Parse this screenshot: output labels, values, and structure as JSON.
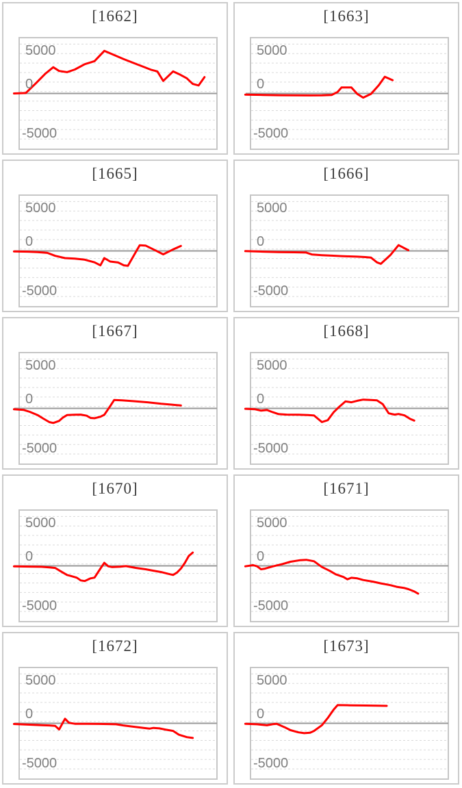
{
  "colors": {
    "series": "#ff0000",
    "zero_line": "#999999",
    "gridline": "#d9d9d9",
    "plot_border": "#c6c6c6",
    "card_border": "#cbcbcb",
    "tick_label": "#808080",
    "title": "#3a3a3a",
    "background": "#ffffff"
  },
  "axis": {
    "ylim": [
      -7250,
      7250
    ],
    "grid_step": 1250,
    "yticks": [
      {
        "label": "5000",
        "value": 5000
      },
      {
        "label": "0",
        "value": 0
      },
      {
        "label": "-5000",
        "value": -5000
      }
    ]
  },
  "chart_data": {
    "type": "line",
    "series_color": "#ff0000",
    "x_unit": "percent_of_plot_width",
    "ylim": [
      -7250,
      7250
    ],
    "grid": "dashed_every_1250",
    "legend": "none",
    "charts": [
      {
        "title": "[1662]",
        "points": [
          [
            -3,
            0
          ],
          [
            3,
            50
          ],
          [
            8,
            1300
          ],
          [
            13,
            2600
          ],
          [
            17,
            3450
          ],
          [
            20,
            2950
          ],
          [
            24,
            2800
          ],
          [
            28,
            3150
          ],
          [
            33,
            3850
          ],
          [
            38,
            4250
          ],
          [
            43,
            5600
          ],
          [
            48,
            5050
          ],
          [
            53,
            4500
          ],
          [
            58,
            4000
          ],
          [
            63,
            3500
          ],
          [
            67,
            3100
          ],
          [
            70,
            2900
          ],
          [
            73,
            1650
          ],
          [
            78,
            2900
          ],
          [
            81,
            2550
          ],
          [
            85,
            2000
          ],
          [
            88,
            1250
          ],
          [
            91,
            1050
          ],
          [
            94,
            2150
          ]
        ]
      },
      {
        "title": "[1663]",
        "points": [
          [
            -3,
            -150
          ],
          [
            6,
            -200
          ],
          [
            14,
            -230
          ],
          [
            22,
            -250
          ],
          [
            30,
            -260
          ],
          [
            36,
            -250
          ],
          [
            41,
            -200
          ],
          [
            44,
            200
          ],
          [
            46,
            780
          ],
          [
            51,
            780
          ],
          [
            54,
            -60
          ],
          [
            57,
            -550
          ],
          [
            61,
            -50
          ],
          [
            65,
            1100
          ],
          [
            68,
            2200
          ],
          [
            72,
            1750
          ]
        ]
      },
      {
        "title": "[1665]",
        "points": [
          [
            -3,
            -60
          ],
          [
            4,
            -100
          ],
          [
            9,
            -160
          ],
          [
            14,
            -260
          ],
          [
            18,
            -650
          ],
          [
            23,
            -950
          ],
          [
            28,
            -1020
          ],
          [
            33,
            -1150
          ],
          [
            38,
            -1500
          ],
          [
            41,
            -1900
          ],
          [
            43,
            -950
          ],
          [
            46,
            -1400
          ],
          [
            50,
            -1520
          ],
          [
            53,
            -1900
          ],
          [
            55,
            -1950
          ],
          [
            61,
            750
          ],
          [
            64,
            700
          ],
          [
            68,
            200
          ],
          [
            73,
            -450
          ],
          [
            78,
            200
          ],
          [
            82,
            660
          ]
        ]
      },
      {
        "title": "[1666]",
        "points": [
          [
            -3,
            -30
          ],
          [
            6,
            -100
          ],
          [
            14,
            -150
          ],
          [
            22,
            -180
          ],
          [
            28,
            -220
          ],
          [
            31,
            -480
          ],
          [
            36,
            -560
          ],
          [
            41,
            -620
          ],
          [
            46,
            -680
          ],
          [
            50,
            -720
          ],
          [
            54,
            -760
          ],
          [
            58,
            -810
          ],
          [
            61,
            -880
          ],
          [
            64,
            -1500
          ],
          [
            66,
            -1700
          ],
          [
            71,
            -500
          ],
          [
            75,
            760
          ],
          [
            80,
            90
          ]
        ]
      },
      {
        "title": "[1667]",
        "points": [
          [
            -3,
            -120
          ],
          [
            2,
            -210
          ],
          [
            5,
            -450
          ],
          [
            9,
            -870
          ],
          [
            12,
            -1350
          ],
          [
            15,
            -1800
          ],
          [
            17,
            -1920
          ],
          [
            20,
            -1650
          ],
          [
            22,
            -1200
          ],
          [
            24,
            -880
          ],
          [
            28,
            -830
          ],
          [
            31,
            -820
          ],
          [
            34,
            -960
          ],
          [
            36,
            -1260
          ],
          [
            38,
            -1300
          ],
          [
            41,
            -1100
          ],
          [
            43,
            -850
          ],
          [
            46,
            300
          ],
          [
            48,
            1100
          ],
          [
            52,
            1050
          ],
          [
            58,
            950
          ],
          [
            65,
            800
          ],
          [
            72,
            600
          ],
          [
            78,
            470
          ],
          [
            82,
            390
          ]
        ]
      },
      {
        "title": "[1668]",
        "points": [
          [
            -3,
            -50
          ],
          [
            2,
            -120
          ],
          [
            5,
            -300
          ],
          [
            8,
            -220
          ],
          [
            11,
            -500
          ],
          [
            14,
            -760
          ],
          [
            18,
            -820
          ],
          [
            24,
            -840
          ],
          [
            29,
            -880
          ],
          [
            32,
            -940
          ],
          [
            36,
            -1800
          ],
          [
            39,
            -1550
          ],
          [
            42,
            -500
          ],
          [
            45,
            250
          ],
          [
            48,
            920
          ],
          [
            51,
            800
          ],
          [
            54,
            1000
          ],
          [
            57,
            1150
          ],
          [
            61,
            1100
          ],
          [
            64,
            1050
          ],
          [
            67,
            550
          ],
          [
            70,
            -650
          ],
          [
            73,
            -820
          ],
          [
            75,
            -740
          ],
          [
            78,
            -920
          ],
          [
            81,
            -1400
          ],
          [
            83,
            -1600
          ]
        ]
      },
      {
        "title": "[1670]",
        "points": [
          [
            -3,
            -60
          ],
          [
            5,
            -100
          ],
          [
            11,
            -130
          ],
          [
            15,
            -200
          ],
          [
            18,
            -280
          ],
          [
            21,
            -750
          ],
          [
            24,
            -1200
          ],
          [
            26,
            -1330
          ],
          [
            29,
            -1560
          ],
          [
            31,
            -1920
          ],
          [
            33,
            -2000
          ],
          [
            36,
            -1650
          ],
          [
            38,
            -1550
          ],
          [
            41,
            -360
          ],
          [
            43,
            400
          ],
          [
            45,
            -60
          ],
          [
            47,
            -160
          ],
          [
            51,
            -110
          ],
          [
            54,
            -40
          ],
          [
            59,
            -270
          ],
          [
            64,
            -450
          ],
          [
            68,
            -640
          ],
          [
            72,
            -820
          ],
          [
            75,
            -1020
          ],
          [
            78,
            -1200
          ],
          [
            80,
            -880
          ],
          [
            82,
            -360
          ],
          [
            84,
            400
          ],
          [
            86,
            1300
          ],
          [
            88,
            1750
          ]
        ]
      },
      {
        "title": "[1671]",
        "points": [
          [
            -3,
            -60
          ],
          [
            1,
            90
          ],
          [
            3,
            -60
          ],
          [
            5,
            -450
          ],
          [
            7,
            -370
          ],
          [
            11,
            -70
          ],
          [
            16,
            240
          ],
          [
            20,
            540
          ],
          [
            25,
            750
          ],
          [
            28,
            790
          ],
          [
            32,
            600
          ],
          [
            36,
            -150
          ],
          [
            40,
            -660
          ],
          [
            43,
            -1110
          ],
          [
            47,
            -1470
          ],
          [
            49,
            -1770
          ],
          [
            51,
            -1570
          ],
          [
            54,
            -1650
          ],
          [
            57,
            -1860
          ],
          [
            62,
            -2080
          ],
          [
            66,
            -2310
          ],
          [
            71,
            -2550
          ],
          [
            74,
            -2760
          ],
          [
            78,
            -2920
          ],
          [
            80,
            -3060
          ],
          [
            83,
            -3370
          ],
          [
            85,
            -3660
          ]
        ]
      },
      {
        "title": "[1672]",
        "points": [
          [
            -3,
            -90
          ],
          [
            5,
            -180
          ],
          [
            11,
            -240
          ],
          [
            15,
            -280
          ],
          [
            18,
            -340
          ],
          [
            20,
            -810
          ],
          [
            23,
            600
          ],
          [
            25,
            60
          ],
          [
            28,
            -60
          ],
          [
            34,
            -70
          ],
          [
            40,
            -80
          ],
          [
            45,
            -100
          ],
          [
            49,
            -130
          ],
          [
            53,
            -300
          ],
          [
            58,
            -450
          ],
          [
            63,
            -600
          ],
          [
            66,
            -700
          ],
          [
            68,
            -600
          ],
          [
            71,
            -670
          ],
          [
            74,
            -820
          ],
          [
            78,
            -1000
          ],
          [
            81,
            -1500
          ],
          [
            85,
            -1820
          ],
          [
            88,
            -1930
          ]
        ]
      },
      {
        "title": "[1673]",
        "points": [
          [
            -3,
            -60
          ],
          [
            3,
            -130
          ],
          [
            8,
            -260
          ],
          [
            11,
            -120
          ],
          [
            13,
            -60
          ],
          [
            17,
            -510
          ],
          [
            20,
            -900
          ],
          [
            24,
            -1190
          ],
          [
            27,
            -1300
          ],
          [
            30,
            -1230
          ],
          [
            32,
            -1000
          ],
          [
            36,
            -250
          ],
          [
            39,
            700
          ],
          [
            42,
            1800
          ],
          [
            44,
            2400
          ],
          [
            50,
            2370
          ],
          [
            58,
            2340
          ],
          [
            64,
            2320
          ],
          [
            69,
            2300
          ]
        ]
      }
    ]
  }
}
